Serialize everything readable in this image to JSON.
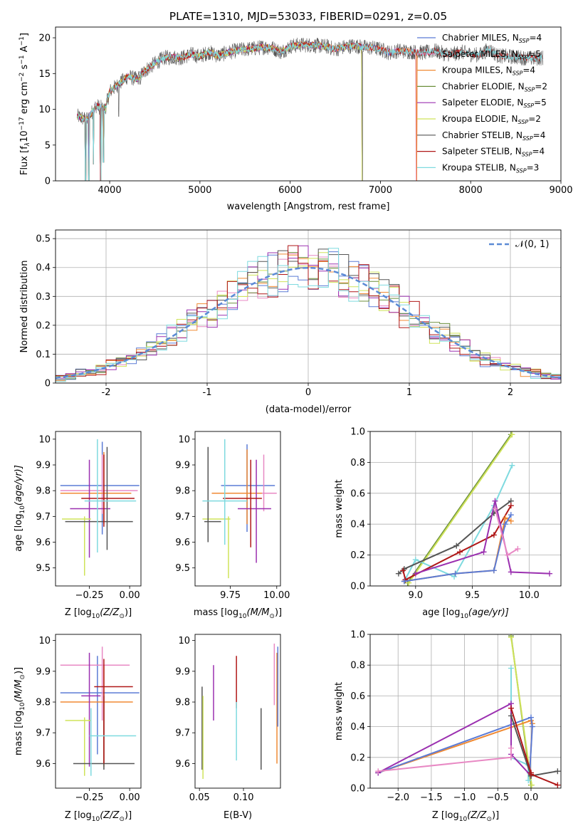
{
  "figure": {
    "colors": [
      "#5b7bd5",
      "#e889c4",
      "#f08a33",
      "#6b8f3b",
      "#9b30b0",
      "#cfe35a",
      "#555555",
      "#b01818",
      "#7fdadf"
    ]
  },
  "chart_data": [
    {
      "id": "spectrum",
      "type": "line",
      "title": "PLATE=1310, MJD=53033, FIBERID=0291, z=0.05",
      "xlabel": "wavelength [Angstrom, rest frame]",
      "ylabel_main": "Flux [f",
      "ylabel_lambda": "λ",
      "ylabel_rest": "10",
      "ylabel_exp1": "−17",
      "ylabel_unit": " erg cm",
      "ylabel_exp2": "−2",
      "ylabel_unit2": " s",
      "ylabel_exp3": "−1",
      "ylabel_unit3": " A",
      "ylabel_exp4": "−1",
      "ylabel_end": "]",
      "xlim": [
        3400,
        9000
      ],
      "ylim": [
        0,
        21.5
      ],
      "xticks": [
        4000,
        5000,
        6000,
        7000,
        8000,
        9000
      ],
      "yticks": [
        0,
        5,
        10,
        15,
        20
      ],
      "legend_position": "upper-right",
      "continuum": [
        [
          3650,
          9
        ],
        [
          3750,
          8.5
        ],
        [
          3850,
          10.5
        ],
        [
          3950,
          10
        ],
        [
          4000,
          12.5
        ],
        [
          4100,
          13.5
        ],
        [
          4200,
          14.6
        ],
        [
          4300,
          14.2
        ],
        [
          4400,
          15.5
        ],
        [
          4500,
          16.4
        ],
        [
          4600,
          17.2
        ],
        [
          4700,
          17.3
        ],
        [
          4800,
          17.2
        ],
        [
          4900,
          17.7
        ],
        [
          5000,
          17.4
        ],
        [
          5100,
          18
        ],
        [
          5200,
          17.5
        ],
        [
          5300,
          17.9
        ],
        [
          5400,
          18.2
        ],
        [
          5500,
          18.4
        ],
        [
          5600,
          18.5
        ],
        [
          5700,
          18.7
        ],
        [
          5800,
          18.6
        ],
        [
          5900,
          18
        ],
        [
          6000,
          18.8
        ],
        [
          6100,
          19
        ],
        [
          6200,
          19
        ],
        [
          6300,
          18.9
        ],
        [
          6400,
          18.8
        ],
        [
          6500,
          18.4
        ],
        [
          6600,
          18.7
        ],
        [
          6700,
          18.9
        ],
        [
          6800,
          18.7
        ],
        [
          6900,
          18.6
        ],
        [
          7000,
          18.4
        ],
        [
          7100,
          17.9
        ],
        [
          7200,
          18.2
        ],
        [
          7300,
          18.1
        ],
        [
          7400,
          18
        ],
        [
          7500,
          17.9
        ],
        [
          7600,
          18.2
        ],
        [
          7700,
          17.8
        ],
        [
          7800,
          17.7
        ],
        [
          7900,
          18
        ],
        [
          8000,
          17.7
        ],
        [
          8100,
          17.6
        ],
        [
          8200,
          18.4
        ],
        [
          8300,
          17.5
        ],
        [
          8400,
          17.4
        ],
        [
          8500,
          17.3
        ],
        [
          8600,
          17.2
        ],
        [
          8700,
          17.1
        ],
        [
          8800,
          17.2
        ]
      ],
      "dips": [
        [
          3733,
          0
        ],
        [
          3770,
          0
        ],
        [
          3820,
          2.3
        ],
        [
          3900,
          0
        ],
        [
          3930,
          2.6
        ],
        [
          4100,
          9
        ],
        [
          4340,
          13.5
        ],
        [
          6800,
          0
        ],
        [
          7400,
          0
        ]
      ],
      "series": [
        {
          "name": "Chabrier MILES, N",
          "sub": "SSP",
          "suffix": "=4",
          "ci": 0,
          "xmax": 7420
        },
        {
          "name": "Salpeter MILES, N",
          "sub": "SSP",
          "suffix": "=5",
          "ci": 1,
          "xmax": 7420
        },
        {
          "name": "Kroupa MILES, N",
          "sub": "SSP",
          "suffix": "=4",
          "ci": 2,
          "xmax": 7420
        },
        {
          "name": "Chabrier ELODIE, N",
          "sub": "SSP",
          "suffix": "=2",
          "ci": 3,
          "xmax": 6800
        },
        {
          "name": "Salpeter ELODIE, N",
          "sub": "SSP",
          "suffix": "=5",
          "ci": 4,
          "xmax": 6800
        },
        {
          "name": "Kroupa ELODIE, N",
          "sub": "SSP",
          "suffix": "=2",
          "ci": 5,
          "xmax": 6800
        },
        {
          "name": "Chabrier STELIB, N",
          "sub": "SSP",
          "suffix": "=4",
          "ci": 6,
          "xmax": 8800
        },
        {
          "name": "Salpeter STELIB, N",
          "sub": "SSP",
          "suffix": "=4",
          "ci": 7,
          "xmax": 8800
        },
        {
          "name": "Kroupa STELIB, N",
          "sub": "SSP",
          "suffix": "=3",
          "ci": 8,
          "xmax": 8800
        }
      ]
    },
    {
      "id": "residuals",
      "type": "step",
      "xlabel": "(data-model)/error",
      "ylabel": "Normed distribution",
      "xlim": [
        -2.5,
        2.5
      ],
      "ylim": [
        0,
        0.53
      ],
      "xticks": [
        -2,
        -1,
        0,
        1,
        2
      ],
      "yticks": [
        0.0,
        0.1,
        0.2,
        0.3,
        0.4,
        0.5
      ],
      "grid": true,
      "bin_width": 0.1,
      "gaussian_label": "𝒩(0, 1)",
      "gaussian_color": "#5b8ad5",
      "legend_position": "upper-right",
      "histogram_series": 9
    },
    {
      "id": "age-vs-Z",
      "type": "errorbar",
      "xlabel_prefix": "Z [log",
      "xlabel_sub": "10",
      "xlabel_suffix": "(Z/Z",
      "xlabel_sun": "⊙",
      "xlabel_end": ")]",
      "ylabel_prefix": "age  [log",
      "ylabel_sub": "10",
      "ylabel_suffix": "(age/yr)]",
      "xlim": [
        -0.46,
        0.07
      ],
      "ylim": [
        9.43,
        10.03
      ],
      "xticks": [
        -0.25,
        0.0
      ],
      "xticklabels": [
        "−0.25",
        "0.00"
      ],
      "yticks": [
        9.5,
        9.6,
        9.7,
        9.8,
        9.9,
        10.0
      ],
      "points": [
        {
          "ci": 0,
          "x": -0.17,
          "y": 9.82,
          "xlo": -0.43,
          "xhi": 0.06,
          "ylo": 9.63,
          "yhi": 9.99
        },
        {
          "ci": 1,
          "x": -0.17,
          "y": 9.8,
          "xlo": -0.43,
          "xhi": 0.05,
          "ylo": 9.71,
          "yhi": 9.94
        },
        {
          "ci": 2,
          "x": -0.16,
          "y": 9.79,
          "xlo": -0.43,
          "xhi": 0.01,
          "ylo": 9.67,
          "yhi": 9.95
        },
        {
          "ci": 4,
          "x": -0.25,
          "y": 9.73,
          "xlo": -0.37,
          "xhi": -0.12,
          "ylo": 9.54,
          "yhi": 9.92
        },
        {
          "ci": 5,
          "x": -0.28,
          "y": 9.69,
          "xlo": -0.42,
          "xhi": -0.24,
          "ylo": 9.47,
          "yhi": 9.7
        },
        {
          "ci": 6,
          "x": -0.14,
          "y": 9.68,
          "xlo": -0.4,
          "xhi": 0.02,
          "ylo": 9.57,
          "yhi": 9.97
        },
        {
          "ci": 7,
          "x": -0.16,
          "y": 9.77,
          "xlo": -0.3,
          "xhi": 0.03,
          "ylo": 9.66,
          "yhi": 9.94
        },
        {
          "ci": 8,
          "x": -0.2,
          "y": 9.76,
          "xlo": -0.28,
          "xhi": 0.04,
          "ylo": 9.56,
          "yhi": 10.0
        }
      ]
    },
    {
      "id": "age-vs-mass",
      "type": "errorbar",
      "xlabel_prefix": "mass [log",
      "xlabel_sub": "10",
      "xlabel_suffix": "(M/M",
      "xlabel_sun": "⊙",
      "xlabel_end": ")]",
      "xlim": [
        9.56,
        10.02
      ],
      "ylim": [
        9.43,
        10.03
      ],
      "xticks": [
        9.75,
        10.0
      ],
      "xticklabels": [
        "9.75",
        "10.00"
      ],
      "yticks": [
        9.5,
        9.6,
        9.7,
        9.8,
        9.9,
        10.0
      ],
      "points": [
        {
          "ci": 0,
          "x": 9.84,
          "y": 9.82,
          "xlo": 9.7,
          "xhi": 9.99,
          "ylo": 9.64,
          "yhi": 9.98
        },
        {
          "ci": 1,
          "x": 9.93,
          "y": 9.79,
          "xlo": 9.75,
          "xhi": 10.0,
          "ylo": 9.72,
          "yhi": 9.94
        },
        {
          "ci": 2,
          "x": 9.84,
          "y": 9.79,
          "xlo": 9.65,
          "xhi": 9.92,
          "ylo": 9.67,
          "yhi": 9.96
        },
        {
          "ci": 4,
          "x": 9.89,
          "y": 9.73,
          "xlo": 9.79,
          "xhi": 9.97,
          "ylo": 9.52,
          "yhi": 9.92
        },
        {
          "ci": 5,
          "x": 9.74,
          "y": 9.69,
          "xlo": 9.6,
          "xhi": 9.75,
          "ylo": 9.46,
          "yhi": 9.7
        },
        {
          "ci": 6,
          "x": 9.63,
          "y": 9.68,
          "xlo": 9.61,
          "xhi": 9.7,
          "ylo": 9.6,
          "yhi": 9.97
        },
        {
          "ci": 7,
          "x": 9.86,
          "y": 9.77,
          "xlo": 9.71,
          "xhi": 9.92,
          "ylo": 9.58,
          "yhi": 9.92
        },
        {
          "ci": 8,
          "x": 9.72,
          "y": 9.76,
          "xlo": 9.6,
          "xhi": 9.84,
          "ylo": 9.59,
          "yhi": 10.0
        }
      ]
    },
    {
      "id": "weight-vs-age",
      "type": "line",
      "xlabel_prefix": "age  [log",
      "xlabel_sub": "10",
      "xlabel_suffix": "(age/yr)]",
      "ylabel": "mass weight",
      "xlim": [
        8.6,
        10.28
      ],
      "ylim": [
        0,
        1.0
      ],
      "xticks": [
        9.0,
        9.5,
        10.0
      ],
      "xticklabels": [
        "9.0",
        "9.5",
        "10.0"
      ],
      "yticks": [
        0.0,
        0.2,
        0.4,
        0.6,
        0.8,
        1.0
      ],
      "yticklabels": [
        "0.0",
        "0.2",
        "0.4",
        "0.6",
        "0.8",
        "1.0"
      ],
      "grid": true,
      "series": [
        {
          "ci": 3,
          "x": [
            8.93,
            9.84
          ],
          "y": [
            0.02,
            0.98
          ]
        },
        {
          "ci": 5,
          "x": [
            8.94,
            9.85
          ],
          "y": [
            0.02,
            0.98
          ]
        },
        {
          "ci": 8,
          "x": [
            8.9,
            9.0,
            9.34,
            9.69,
            9.85
          ],
          "y": [
            0.03,
            0.17,
            0.06,
            0.52,
            0.78
          ]
        },
        {
          "ci": 6,
          "x": [
            8.85,
            8.9,
            9.36,
            9.69,
            9.84
          ],
          "y": [
            0.08,
            0.11,
            0.26,
            0.47,
            0.55
          ]
        },
        {
          "ci": 7,
          "x": [
            8.89,
            8.91,
            9.39,
            9.69,
            9.84
          ],
          "y": [
            0.1,
            0.04,
            0.22,
            0.33,
            0.52
          ]
        },
        {
          "ci": 2,
          "x": [
            8.9,
            9.35,
            9.69,
            9.79,
            9.84
          ],
          "y": [
            0.03,
            0.08,
            0.1,
            0.44,
            0.42
          ]
        },
        {
          "ci": 0,
          "x": [
            8.9,
            9.35,
            9.69,
            9.79,
            9.84
          ],
          "y": [
            0.03,
            0.08,
            0.1,
            0.4,
            0.46
          ]
        },
        {
          "ci": 4,
          "x": [
            9.0,
            9.6,
            9.7,
            9.84,
            10.18
          ],
          "y": [
            0.08,
            0.22,
            0.55,
            0.09,
            0.08
          ]
        },
        {
          "ci": 1,
          "x": [
            9.7,
            9.81,
            9.9
          ],
          "y": [
            0.5,
            0.2,
            0.24
          ]
        }
      ]
    },
    {
      "id": "mass-vs-Z",
      "type": "errorbar",
      "xlabel_prefix": "Z [log",
      "xlabel_sub": "10",
      "xlabel_suffix": "(Z/Z",
      "xlabel_sun": "⊙",
      "xlabel_end": ")]",
      "ylabel_prefix": "mass [log",
      "ylabel_sub": "10",
      "ylabel_suffix": "(M/M",
      "ylabel_sun": "⊙",
      "ylabel_end": ")]",
      "xlim": [
        -0.46,
        0.07
      ],
      "ylim": [
        9.52,
        10.02
      ],
      "xticks": [
        -0.25,
        0.0
      ],
      "xticklabels": [
        "−0.25",
        "0.00"
      ],
      "yticks": [
        9.6,
        9.7,
        9.8,
        9.9,
        10.0
      ],
      "points": [
        {
          "ci": 0,
          "x": -0.2,
          "y": 9.83,
          "xlo": -0.43,
          "xhi": 0.06,
          "ylo": 9.63,
          "yhi": 9.95
        },
        {
          "ci": 1,
          "x": -0.17,
          "y": 9.92,
          "xlo": -0.43,
          "xhi": 0.0,
          "ylo": 9.74,
          "yhi": 9.98
        },
        {
          "ci": 2,
          "x": -0.16,
          "y": 9.8,
          "xlo": -0.43,
          "xhi": 0.02,
          "ylo": 9.59,
          "yhi": 9.92
        },
        {
          "ci": 4,
          "x": -0.25,
          "y": 9.82,
          "xlo": -0.3,
          "xhi": -0.18,
          "ylo": 9.59,
          "yhi": 9.96
        },
        {
          "ci": 5,
          "x": -0.28,
          "y": 9.74,
          "xlo": -0.4,
          "xhi": -0.24,
          "ylo": 9.56,
          "yhi": 9.75
        },
        {
          "ci": 6,
          "x": -0.16,
          "y": 9.6,
          "xlo": -0.35,
          "xhi": 0.03,
          "ylo": 9.58,
          "yhi": 9.82
        },
        {
          "ci": 7,
          "x": -0.16,
          "y": 9.85,
          "xlo": -0.22,
          "xhi": 0.02,
          "ylo": 9.6,
          "yhi": 9.94
        },
        {
          "ci": 8,
          "x": -0.24,
          "y": 9.69,
          "xlo": -0.25,
          "xhi": 0.04,
          "ylo": 9.56,
          "yhi": 9.78
        }
      ]
    },
    {
      "id": "mass-vs-EBV",
      "type": "errorbar",
      "xlabel": "E(B-V)",
      "xlim": [
        0.045,
        0.142
      ],
      "ylim": [
        9.52,
        10.02
      ],
      "xticks": [
        0.05,
        0.1
      ],
      "xticklabels": [
        "0.05",
        "0.10"
      ],
      "yticks": [
        9.6,
        9.7,
        9.8,
        9.9,
        10.0
      ],
      "points": [
        {
          "ci": 6,
          "x": 0.053,
          "y": 9.74,
          "ylo": 9.58,
          "yhi": 9.85
        },
        {
          "ci": 5,
          "x": 0.054,
          "y": 9.7,
          "ylo": 9.55,
          "yhi": 9.82
        },
        {
          "ci": 4,
          "x": 0.066,
          "y": 9.83,
          "ylo": 9.74,
          "yhi": 9.92
        },
        {
          "ci": 7,
          "x": 0.092,
          "y": 9.87,
          "ylo": 9.78,
          "yhi": 9.95
        },
        {
          "ci": 8,
          "x": 0.092,
          "y": 9.7,
          "ylo": 9.61,
          "yhi": 9.8
        },
        {
          "ci": 6,
          "x": 0.12,
          "y": 9.7,
          "ylo": 9.58,
          "yhi": 9.78
        },
        {
          "ci": 1,
          "x": 0.135,
          "y": 9.92,
          "ylo": 9.79,
          "yhi": 9.99
        },
        {
          "ci": 2,
          "x": 0.138,
          "y": 9.77,
          "ylo": 9.6,
          "yhi": 9.96
        },
        {
          "ci": 0,
          "x": 0.139,
          "y": 9.85,
          "ylo": 9.72,
          "yhi": 9.98
        }
      ]
    },
    {
      "id": "weight-vs-Z",
      "type": "line",
      "xlabel_prefix": "Z [log",
      "xlabel_sub": "10",
      "xlabel_suffix": "(Z/Z",
      "xlabel_sun": "⊙",
      "xlabel_end": ")]",
      "ylabel": "mass weight",
      "xlim": [
        -2.42,
        0.45
      ],
      "ylim": [
        0,
        1.0
      ],
      "xticks": [
        -2.0,
        -1.5,
        -1.0,
        -0.5,
        0.0
      ],
      "xticklabels": [
        "−2.0",
        "−1.5",
        "−1.0",
        "−0.5",
        "0.0"
      ],
      "yticks": [
        0.0,
        0.2,
        0.4,
        0.6,
        0.8,
        1.0
      ],
      "yticklabels": [
        "0.0",
        "0.2",
        "0.4",
        "0.6",
        "0.8",
        "1.0"
      ],
      "grid": true,
      "series": [
        {
          "ci": 3,
          "x": [
            -0.3,
            0.0
          ],
          "y": [
            0.99,
            0.02
          ]
        },
        {
          "ci": 5,
          "x": [
            -0.3,
            0.01
          ],
          "y": [
            0.98,
            0.02
          ]
        },
        {
          "ci": 8,
          "x": [
            -0.3,
            -0.3,
            -0.04,
            -0.04
          ],
          "y": [
            0.78,
            0.2,
            0.15,
            0.05
          ]
        },
        {
          "ci": 2,
          "x": [
            -2.3,
            0.0,
            0.02,
            -0.02
          ],
          "y": [
            0.1,
            0.44,
            0.42,
            0.1
          ]
        },
        {
          "ci": 0,
          "x": [
            -2.3,
            0.0,
            0.02,
            -0.02
          ],
          "y": [
            0.1,
            0.46,
            0.4,
            0.1
          ]
        },
        {
          "ci": 4,
          "x": [
            -2.3,
            -0.3,
            -0.3,
            0.0
          ],
          "y": [
            0.1,
            0.55,
            0.22,
            0.08
          ]
        },
        {
          "ci": 6,
          "x": [
            -0.3,
            0.0,
            0.0,
            0.4
          ],
          "y": [
            0.47,
            0.08,
            0.08,
            0.11
          ]
        },
        {
          "ci": 7,
          "x": [
            -0.3,
            0.0,
            0.0,
            0.4
          ],
          "y": [
            0.52,
            0.1,
            0.09,
            0.02
          ]
        },
        {
          "ci": 1,
          "x": [
            -2.3,
            -0.3,
            -0.3
          ],
          "y": [
            0.11,
            0.2,
            0.26
          ]
        }
      ]
    }
  ]
}
